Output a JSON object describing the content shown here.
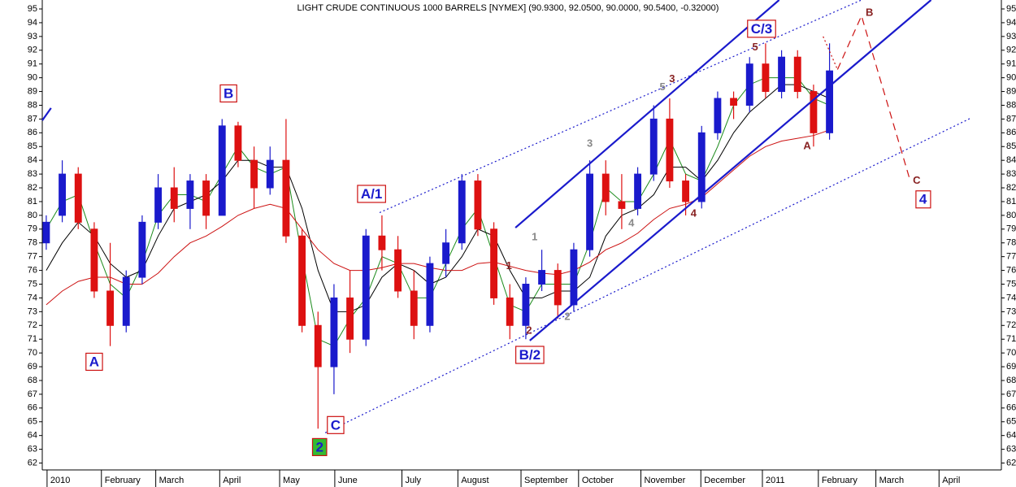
{
  "chart_data": {
    "type": "candlestick",
    "title": "LIGHT CRUDE CONTINUOUS 1000 BARRELS [NYMEX] (90.9300, 92.0500, 90.0000, 90.5400, -0.32000)",
    "xlim": [
      0,
      120
    ],
    "xticks": [
      {
        "value": 0.6,
        "label": "2010"
      },
      {
        "value": 7.4,
        "label": "February"
      },
      {
        "value": 14.2,
        "label": "March"
      },
      {
        "value": 22.2,
        "label": "April"
      },
      {
        "value": 29.7,
        "label": "May"
      },
      {
        "value": 36.6,
        "label": "June"
      },
      {
        "value": 45,
        "label": "July"
      },
      {
        "value": 52,
        "label": "August"
      },
      {
        "value": 59.9,
        "label": "September"
      },
      {
        "value": 67.1,
        "label": "October"
      },
      {
        "value": 74.9,
        "label": "November"
      },
      {
        "value": 82.4,
        "label": "December"
      },
      {
        "value": 90.1,
        "label": "2011"
      },
      {
        "value": 97.1,
        "label": "February"
      },
      {
        "value": 104.3,
        "label": "March"
      },
      {
        "value": 112.2,
        "label": "April"
      }
    ],
    "ylim": [
      61.5,
      95.65
    ],
    "yticks": [
      62,
      63,
      64,
      65,
      66,
      67,
      68,
      69,
      70,
      71,
      72,
      73,
      74,
      75,
      76,
      77,
      78,
      79,
      80,
      81,
      82,
      83,
      84,
      85,
      86,
      87,
      88,
      89,
      90,
      91,
      92,
      93,
      94,
      95
    ],
    "up_color": "#1a1acc",
    "down_color": "#dd1111",
    "x": [
      0.5,
      2.5,
      4.5,
      6.5,
      8.5,
      10.5,
      12.5,
      14.5,
      16.5,
      18.5,
      20.5,
      22.5,
      24.5,
      26.5,
      28.5,
      30.5,
      32.5,
      34.5,
      36.5,
      38.5,
      40.5,
      42.5,
      44.5,
      46.5,
      48.5,
      50.5,
      52.5,
      54.5,
      56.5,
      58.5,
      60.5,
      62.5,
      64.5,
      66.5,
      68.5,
      70.5,
      72.5,
      74.5,
      76.5,
      78.5,
      80.5,
      82.5,
      84.5,
      86.5,
      88.5,
      90.5,
      92.5,
      94.5,
      96.5,
      98.5
    ],
    "open": [
      78,
      80,
      83,
      79,
      74.5,
      72,
      75.5,
      79.5,
      82,
      80.5,
      82.5,
      80,
      86.5,
      84,
      82,
      84,
      78.5,
      72,
      69,
      74,
      71,
      78.5,
      77.5,
      74.5,
      72,
      76.5,
      78,
      82.5,
      79,
      74,
      72,
      75,
      76,
      73.5,
      77.5,
      83,
      81,
      80.5,
      83,
      87,
      82.5,
      81,
      86,
      88.5,
      88,
      91,
      89,
      91.5,
      89,
      86
    ],
    "high": [
      80,
      84,
      83.5,
      79.5,
      78,
      76,
      80,
      83,
      83.5,
      83,
      83,
      87,
      86.8,
      85,
      85,
      87,
      79,
      73,
      75,
      76,
      79,
      80,
      78.5,
      76,
      77,
      79,
      83,
      83,
      79.5,
      75,
      75.5,
      77.5,
      76.5,
      78,
      84,
      84,
      83,
      83.5,
      88,
      88.5,
      83,
      86.5,
      89,
      89,
      91.5,
      92.5,
      92,
      92,
      89.5,
      92.5
    ],
    "low": [
      77.5,
      79.5,
      79,
      74,
      70.5,
      71.5,
      75,
      79,
      79.5,
      79,
      79,
      80,
      83.5,
      80.5,
      81.5,
      78,
      71.5,
      64.5,
      67,
      70,
      70.5,
      76,
      74,
      71,
      71.5,
      75.5,
      77.5,
      78.5,
      73.5,
      71,
      71,
      74.5,
      72.5,
      73,
      77,
      80,
      79,
      80,
      82.5,
      82,
      80,
      80.5,
      85.5,
      87,
      87.5,
      88.5,
      88.5,
      88.5,
      85,
      85.5
    ],
    "close": [
      79.5,
      83,
      79.5,
      74.5,
      72,
      75.5,
      79.5,
      82,
      80.5,
      82.5,
      80,
      86.5,
      84,
      82,
      84,
      78.5,
      72,
      69,
      74,
      71,
      78.5,
      77.5,
      74.5,
      72,
      76.5,
      78,
      82.5,
      79,
      74,
      72,
      75,
      76,
      73.5,
      77.5,
      83,
      81,
      80.5,
      83,
      87,
      82.5,
      81,
      86,
      88.5,
      88,
      91,
      89,
      91.5,
      89,
      86,
      90.5
    ],
    "series": [
      {
        "color": "#1a8a1a",
        "values": [
          79,
          81,
          81.5,
          78,
          75,
          74,
          76.5,
          80,
          81.5,
          81.5,
          81,
          83,
          85,
          83.5,
          83,
          83.5,
          77,
          71,
          70.5,
          72.5,
          74,
          77,
          76.5,
          74,
          74,
          76.5,
          79,
          80.5,
          77,
          73.5,
          73,
          75,
          75,
          75,
          78,
          82,
          81,
          81,
          83,
          85.5,
          83,
          82.5,
          85,
          88,
          89.5,
          90,
          90,
          90,
          88.5,
          88
        ]
      },
      {
        "color": "#000000",
        "values": [
          76,
          78,
          79.5,
          78.5,
          76.5,
          75.5,
          76,
          78.5,
          80.5,
          81,
          81.5,
          82.5,
          84,
          84,
          83.5,
          83.5,
          80.5,
          76,
          73,
          73,
          73.5,
          75.5,
          76.5,
          76,
          75,
          75.5,
          77,
          79,
          78.5,
          76,
          74,
          74,
          74.5,
          74.5,
          75.5,
          78.5,
          80,
          80.5,
          81.5,
          83.5,
          83.5,
          82.5,
          84,
          86,
          87.5,
          88.5,
          89.5,
          89.5,
          89,
          88.5
        ]
      },
      {
        "color": "#cc1111",
        "values": [
          73.5,
          74.5,
          75.2,
          75.5,
          75.5,
          75,
          75,
          75.8,
          77,
          78,
          78.5,
          79.2,
          80,
          80.5,
          80.8,
          80.5,
          79,
          77.5,
          76.5,
          76,
          76,
          76.2,
          76.5,
          76.5,
          76.2,
          76,
          76,
          76.5,
          76.6,
          76.3,
          76,
          75.8,
          75.7,
          76,
          76.6,
          77.5,
          78,
          78.7,
          79.7,
          80.5,
          80.8,
          81.3,
          82.3,
          83.3,
          84.3,
          85,
          85.4,
          85.6,
          85.8,
          86.2
        ]
      }
    ],
    "lines": [
      {
        "x": [
          59.2,
          92.2
        ],
        "y": [
          79.1,
          95.65
        ],
        "color": "#1a1acc",
        "style": "solid"
      },
      {
        "x": [
          61.0,
          111.2
        ],
        "y": [
          70.9,
          95.65
        ],
        "color": "#1a1acc",
        "style": "solid"
      },
      {
        "x": [
          42.2,
          102.5
        ],
        "y": [
          80.2,
          95.65
        ],
        "color": "#1a1acc",
        "style": "dotted"
      },
      {
        "x": [
          35.4,
          116.3
        ],
        "y": [
          64.2,
          87.1
        ],
        "color": "#1a1acc",
        "style": "dotted"
      },
      {
        "x": [
          0,
          1.1
        ],
        "y": [
          86.9,
          87.8
        ],
        "color": "#1a1acc",
        "style": "solid"
      },
      {
        "x": [
          97.7,
          99.5
        ],
        "y": [
          93.0,
          90.6
        ],
        "color": "#cc1111",
        "style": "dotted"
      },
      {
        "x": [
          99.5,
          102.5,
          108.6
        ],
        "y": [
          90.6,
          94.5,
          82.5
        ],
        "color": "#cc1111",
        "style": "dashed"
      }
    ],
    "annotations": [
      {
        "text": "A",
        "x": 6.5,
        "y": 69.3,
        "color": "#1a1acc",
        "border": "#cc1111"
      },
      {
        "text": "B",
        "x": 23.3,
        "y": 88.8,
        "color": "#1a1acc",
        "border": "#cc1111"
      },
      {
        "text": "A/1",
        "x": 41.2,
        "y": 81.5,
        "color": "#1a1acc",
        "border": "#cc1111"
      },
      {
        "text": "C",
        "x": 36.7,
        "y": 64.7,
        "color": "#1a1acc",
        "border": "#cc1111"
      },
      {
        "text": "2",
        "x": 34.7,
        "y": 63.1,
        "color": "#1a1acc",
        "border": "#cc1111",
        "fill": "#33bb33"
      },
      {
        "text": "B/2",
        "x": 61.0,
        "y": 69.8,
        "color": "#1a1acc",
        "border": "#cc1111"
      },
      {
        "text": "C/3",
        "x": 90.0,
        "y": 93.5,
        "color": "#1a1acc",
        "border": "#cc1111"
      },
      {
        "text": "4",
        "x": 110.2,
        "y": 81.1,
        "color": "#1a1acc",
        "border": "#cc1111"
      },
      {
        "text": "1",
        "x": 58.4,
        "y": 76.3,
        "color": "#882222"
      },
      {
        "text": "2",
        "x": 60.9,
        "y": 71.6,
        "color": "#882222"
      },
      {
        "text": "3",
        "x": 78.8,
        "y": 89.9,
        "color": "#882222"
      },
      {
        "text": "5",
        "x": 89.2,
        "y": 92.2,
        "color": "#882222"
      },
      {
        "text": "4",
        "x": 81.5,
        "y": 80.1,
        "color": "#882222"
      },
      {
        "text": "A",
        "x": 95.7,
        "y": 85.0,
        "color": "#882222"
      },
      {
        "text": "B",
        "x": 103.5,
        "y": 94.7,
        "color": "#882222"
      },
      {
        "text": "C",
        "x": 109.4,
        "y": 82.5,
        "color": "#882222"
      },
      {
        "text": "1",
        "x": 61.6,
        "y": 78.4,
        "color": "#888888"
      },
      {
        "text": "2",
        "x": 65.7,
        "y": 72.6,
        "color": "#888888"
      },
      {
        "text": "3",
        "x": 68.5,
        "y": 85.2,
        "color": "#888888"
      },
      {
        "text": "4",
        "x": 73.7,
        "y": 79.4,
        "color": "#888888"
      },
      {
        "text": "5",
        "x": 77.6,
        "y": 89.3,
        "color": "#888888"
      }
    ]
  }
}
